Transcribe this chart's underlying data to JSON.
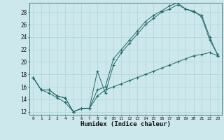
{
  "xlabel": "Humidex (Indice chaleur)",
  "background_color": "#cce8ec",
  "grid_color": "#b0d4d8",
  "line_color": "#1e6b6b",
  "xlim": [
    -0.5,
    23.5
  ],
  "ylim": [
    11.5,
    29.5
  ],
  "xticks": [
    0,
    1,
    2,
    3,
    4,
    5,
    6,
    7,
    8,
    9,
    10,
    11,
    12,
    13,
    14,
    15,
    16,
    17,
    18,
    19,
    20,
    21,
    22,
    23
  ],
  "yticks": [
    12,
    14,
    16,
    18,
    20,
    22,
    24,
    26,
    28
  ],
  "line1_x": [
    0,
    1,
    2,
    3,
    4,
    5,
    6,
    7,
    8,
    9,
    10,
    11,
    12,
    13,
    14,
    15,
    16,
    17,
    18,
    19,
    20,
    21,
    22,
    23
  ],
  "line1_y": [
    17.5,
    15.5,
    15.0,
    14.2,
    13.5,
    12.0,
    12.5,
    12.5,
    18.5,
    15.0,
    19.5,
    21.5,
    23.0,
    24.5,
    26.0,
    27.0,
    28.0,
    28.5,
    29.2,
    28.5,
    28.2,
    27.2,
    23.5,
    21.2
  ],
  "line2_x": [
    0,
    1,
    2,
    3,
    4,
    5,
    6,
    7,
    8,
    9,
    10,
    11,
    12,
    13,
    14,
    15,
    16,
    17,
    18,
    19,
    20,
    21,
    22,
    23
  ],
  "line2_y": [
    17.5,
    15.5,
    15.5,
    14.5,
    14.2,
    12.0,
    12.5,
    12.5,
    15.5,
    16.0,
    20.5,
    22.0,
    23.5,
    25.0,
    26.5,
    27.5,
    28.2,
    29.0,
    29.5,
    28.5,
    28.0,
    27.5,
    24.0,
    21.0
  ],
  "line3_x": [
    0,
    1,
    2,
    3,
    4,
    5,
    6,
    7,
    8,
    9,
    10,
    11,
    12,
    13,
    14,
    15,
    16,
    17,
    18,
    19,
    20,
    21,
    22,
    23
  ],
  "line3_y": [
    17.5,
    15.5,
    15.5,
    14.5,
    14.2,
    12.0,
    12.5,
    12.5,
    14.5,
    15.5,
    16.0,
    16.5,
    17.0,
    17.5,
    18.0,
    18.5,
    19.0,
    19.5,
    20.0,
    20.5,
    21.0,
    21.2,
    21.5,
    21.0
  ]
}
